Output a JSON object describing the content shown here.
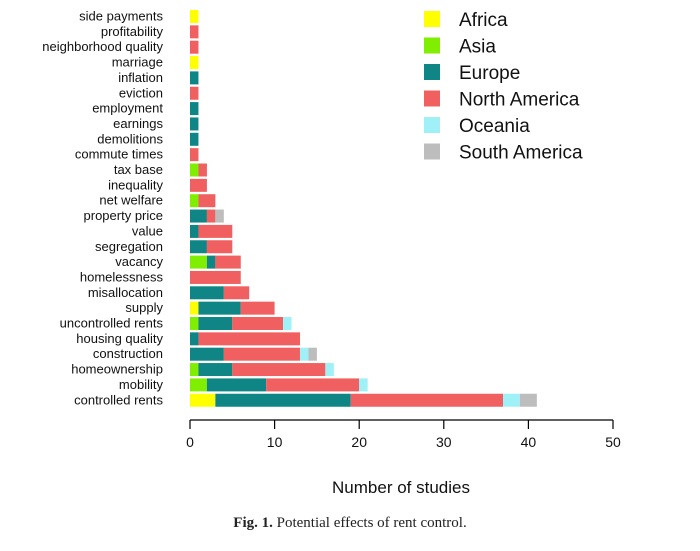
{
  "chart_data": {
    "type": "bar",
    "orientation": "horizontal",
    "stacked": true,
    "title": "",
    "xlabel": "Number of studies",
    "ylabel": "",
    "xlim": [
      0,
      50
    ],
    "xticks": [
      0,
      10,
      20,
      30,
      40,
      50
    ],
    "legend_position": "top-right",
    "categories": [
      "side payments",
      "profitability",
      "neighborhood quality",
      "marriage",
      "inflation",
      "eviction",
      "employment",
      "earnings",
      "demolitions",
      "commute times",
      "tax base",
      "inequality",
      "net welfare",
      "property price",
      "value",
      "segregation",
      "vacancy",
      "homelessness",
      "misallocation",
      "supply",
      "uncontrolled rents",
      "housing quality",
      "construction",
      "homeownership",
      "mobility",
      "controlled rents"
    ],
    "series": [
      {
        "name": "Africa",
        "color": "#ffff00",
        "values": [
          1,
          0,
          0,
          1,
          0,
          0,
          0,
          0,
          0,
          0,
          0,
          0,
          0,
          0,
          0,
          0,
          0,
          0,
          0,
          1,
          0,
          0,
          0,
          0,
          0,
          3
        ]
      },
      {
        "name": "Asia",
        "color": "#80ee00",
        "values": [
          0,
          0,
          0,
          0,
          0,
          0,
          0,
          0,
          0,
          0,
          1,
          0,
          1,
          0,
          0,
          0,
          2,
          0,
          0,
          0,
          1,
          0,
          0,
          1,
          2,
          0
        ]
      },
      {
        "name": "Europe",
        "color": "#0f8585",
        "values": [
          0,
          0,
          0,
          0,
          1,
          0,
          1,
          1,
          1,
          0,
          0,
          0,
          0,
          2,
          1,
          2,
          1,
          0,
          4,
          5,
          4,
          1,
          4,
          4,
          7,
          16
        ]
      },
      {
        "name": "North America",
        "color": "#f06060",
        "values": [
          0,
          1,
          1,
          0,
          0,
          1,
          0,
          0,
          0,
          1,
          1,
          2,
          2,
          1,
          4,
          3,
          3,
          6,
          3,
          4,
          6,
          12,
          9,
          11,
          11,
          18
        ]
      },
      {
        "name": "Oceania",
        "color": "#a0f0f8",
        "values": [
          0,
          0,
          0,
          0,
          0,
          0,
          0,
          0,
          0,
          0,
          0,
          0,
          0,
          0,
          0,
          0,
          0,
          0,
          0,
          0,
          1,
          0,
          1,
          1,
          1,
          2
        ]
      },
      {
        "name": "South America",
        "color": "#bdbdbd",
        "values": [
          0,
          0,
          0,
          0,
          0,
          0,
          0,
          0,
          0,
          0,
          0,
          0,
          0,
          1,
          0,
          0,
          0,
          0,
          0,
          0,
          0,
          0,
          1,
          0,
          0,
          2
        ]
      }
    ]
  },
  "caption": {
    "label": "Fig. 1.",
    "text": "Potential effects of rent control."
  }
}
